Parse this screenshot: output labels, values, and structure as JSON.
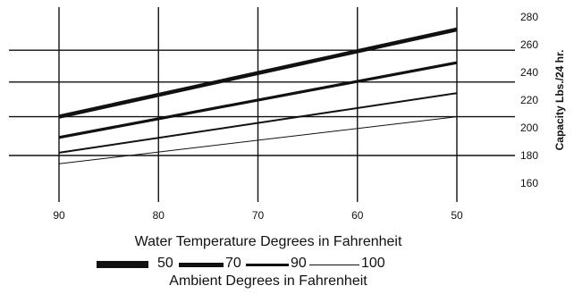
{
  "chart_data": {
    "type": "line",
    "title": "",
    "xlabel": "Water Temperature Degrees in Fahrenheit",
    "ylabel": "Capacity Lbs./24 hr.",
    "subtitle": "Ambient Degrees in Fahrenheit",
    "x": [
      90,
      50
    ],
    "x_ticks": [
      90,
      80,
      70,
      60,
      50
    ],
    "y_ticks": [
      160,
      180,
      200,
      220,
      240,
      260,
      280
    ],
    "xlim": [
      95,
      45
    ],
    "ylim": [
      150,
      285
    ],
    "grid": true,
    "legend_placement": "bottom",
    "series": [
      {
        "name": "50",
        "values": [
          208,
          271
        ]
      },
      {
        "name": "70",
        "values": [
          193,
          247
        ]
      },
      {
        "name": "90",
        "values": [
          182,
          225
        ]
      },
      {
        "name": "100",
        "values": [
          174,
          208
        ]
      }
    ],
    "colors": {
      "line": "#111111",
      "grid": "#111111"
    }
  }
}
